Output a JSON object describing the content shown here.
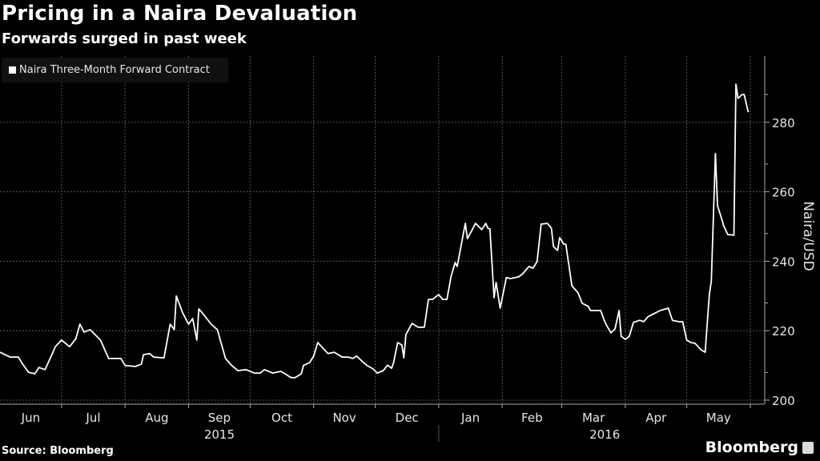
{
  "chart_data": {
    "type": "line",
    "title": "Pricing in a Naira Devaluation",
    "subtitle": "Forwards surged in past week",
    "ylabel": "Naira/USD",
    "xlabel": "",
    "ylim": [
      198,
      296
    ],
    "yticks": [
      200,
      220,
      240,
      260,
      280
    ],
    "x_unit": "days since 2015-06-01",
    "xlim": [
      0,
      372
    ],
    "month_labels": [
      {
        "label": "Jun",
        "start": 0
      },
      {
        "label": "Jul",
        "start": 30
      },
      {
        "label": "Aug",
        "start": 61
      },
      {
        "label": "Sep",
        "start": 92
      },
      {
        "label": "Oct",
        "start": 122
      },
      {
        "label": "Nov",
        "start": 153
      },
      {
        "label": "Dec",
        "start": 183
      },
      {
        "label": "Jan",
        "start": 214
      },
      {
        "label": "Feb",
        "start": 245
      },
      {
        "label": "Mar",
        "start": 274
      },
      {
        "label": "Apr",
        "start": 305
      },
      {
        "label": "May",
        "start": 335
      }
    ],
    "month_end": 366,
    "years": [
      {
        "label": "2015",
        "center": 107
      },
      {
        "label": "2016",
        "center": 295
      }
    ],
    "year_divider": 214,
    "grid": true,
    "legend_placement": "top-left",
    "series": [
      {
        "name": "Naira Three-Month Forward Contract",
        "color": "#ffffff",
        "points": [
          [
            0,
            213.8
          ],
          [
            5,
            212.4
          ],
          [
            9,
            212.4
          ],
          [
            11,
            210.4
          ],
          [
            14,
            208
          ],
          [
            17,
            207.6
          ],
          [
            19,
            209.4
          ],
          [
            22,
            208.8
          ],
          [
            25,
            212.7
          ],
          [
            27,
            215.4
          ],
          [
            30,
            217.3
          ],
          [
            34,
            215.4
          ],
          [
            37,
            217.7
          ],
          [
            39,
            221.9
          ],
          [
            41,
            219.6
          ],
          [
            44,
            220.3
          ],
          [
            49,
            217.3
          ],
          [
            53,
            212
          ],
          [
            59,
            212
          ],
          [
            61,
            210
          ],
          [
            66,
            209.7
          ],
          [
            69,
            210.4
          ],
          [
            70,
            213.1
          ],
          [
            73,
            213.4
          ],
          [
            75,
            212.4
          ],
          [
            80,
            212.2
          ],
          [
            83,
            221.9
          ],
          [
            85,
            220.3
          ],
          [
            86,
            230
          ],
          [
            89,
            225.3
          ],
          [
            92,
            221.9
          ],
          [
            94,
            223.5
          ],
          [
            96,
            217.3
          ],
          [
            97,
            226.3
          ],
          [
            99,
            224.9
          ],
          [
            103,
            221.9
          ],
          [
            106,
            220.3
          ],
          [
            110,
            212
          ],
          [
            113,
            210
          ],
          [
            116,
            208.5
          ],
          [
            120,
            208.8
          ],
          [
            124,
            207.8
          ],
          [
            127,
            207.8
          ],
          [
            129,
            208.8
          ],
          [
            133,
            207.8
          ],
          [
            137,
            208.3
          ],
          [
            139,
            207.6
          ],
          [
            142,
            206.5
          ],
          [
            144,
            206.5
          ],
          [
            147,
            207.6
          ],
          [
            148,
            210
          ],
          [
            151,
            210.8
          ],
          [
            153,
            212.7
          ],
          [
            155,
            216.6
          ],
          [
            160,
            213.4
          ],
          [
            163,
            213.8
          ],
          [
            167,
            212.4
          ],
          [
            170,
            212.4
          ],
          [
            172,
            212
          ],
          [
            174,
            212.7
          ],
          [
            177,
            211
          ],
          [
            179,
            210
          ],
          [
            182,
            209
          ],
          [
            184,
            207.8
          ],
          [
            187,
            208.5
          ],
          [
            189,
            210.1
          ],
          [
            191,
            209.2
          ],
          [
            192,
            210.8
          ],
          [
            194,
            216.6
          ],
          [
            196,
            215.9
          ],
          [
            197,
            212.2
          ],
          [
            198,
            218.9
          ],
          [
            201,
            222.1
          ],
          [
            204,
            221
          ],
          [
            207,
            221
          ],
          [
            209,
            229
          ],
          [
            211,
            229
          ],
          [
            214,
            230.4
          ],
          [
            216,
            229
          ],
          [
            218,
            229
          ],
          [
            220,
            235.5
          ],
          [
            222,
            239.6
          ],
          [
            223,
            238.5
          ],
          [
            227,
            250.9
          ],
          [
            228,
            246.5
          ],
          [
            232,
            250.9
          ],
          [
            235,
            249.1
          ],
          [
            237,
            250.9
          ],
          [
            238,
            249.5
          ],
          [
            239,
            249.3
          ],
          [
            241,
            229.5
          ],
          [
            242,
            233.9
          ],
          [
            244,
            226.5
          ],
          [
            247,
            235.3
          ],
          [
            249,
            235
          ],
          [
            253,
            235.5
          ],
          [
            255,
            236.4
          ],
          [
            258,
            238.5
          ],
          [
            260,
            238
          ],
          [
            262,
            239.9
          ],
          [
            264,
            250.7
          ],
          [
            267,
            250.9
          ],
          [
            269,
            249.5
          ],
          [
            270,
            244.2
          ],
          [
            272,
            243.1
          ],
          [
            273,
            246.8
          ],
          [
            275,
            244.9
          ],
          [
            276,
            244.9
          ],
          [
            279,
            232.9
          ],
          [
            282,
            230.9
          ],
          [
            284,
            227.9
          ],
          [
            287,
            227
          ],
          [
            288,
            225.8
          ],
          [
            293,
            225.8
          ],
          [
            295,
            222.6
          ],
          [
            296,
            221.4
          ],
          [
            298,
            219.4
          ],
          [
            300,
            220.5
          ],
          [
            302,
            225.8
          ],
          [
            303,
            218.4
          ],
          [
            305,
            217.5
          ],
          [
            307,
            218.4
          ],
          [
            309,
            222.4
          ],
          [
            312,
            223
          ],
          [
            314,
            222.6
          ],
          [
            316,
            224
          ],
          [
            319,
            224.9
          ],
          [
            322,
            225.8
          ],
          [
            326,
            226.5
          ],
          [
            328,
            223
          ],
          [
            331,
            222.6
          ],
          [
            333,
            222.6
          ],
          [
            335,
            217.3
          ],
          [
            337,
            216.6
          ],
          [
            339,
            216.4
          ],
          [
            342,
            214.5
          ],
          [
            344,
            213.8
          ],
          [
            346,
            230.4
          ],
          [
            347,
            234.3
          ],
          [
            349,
            271
          ],
          [
            350,
            256
          ],
          [
            352,
            252.3
          ],
          [
            353,
            250.2
          ],
          [
            355,
            247.7
          ],
          [
            358,
            247.5
          ],
          [
            359,
            291
          ],
          [
            360,
            286.9
          ],
          [
            362,
            288
          ],
          [
            363,
            288
          ],
          [
            365,
            282.9
          ]
        ]
      }
    ]
  },
  "footer": {
    "source": "Source: Bloomberg",
    "brand": "Bloomberg"
  },
  "colors": {
    "background": "#000000",
    "line": "#ffffff",
    "grid": "#555555"
  }
}
